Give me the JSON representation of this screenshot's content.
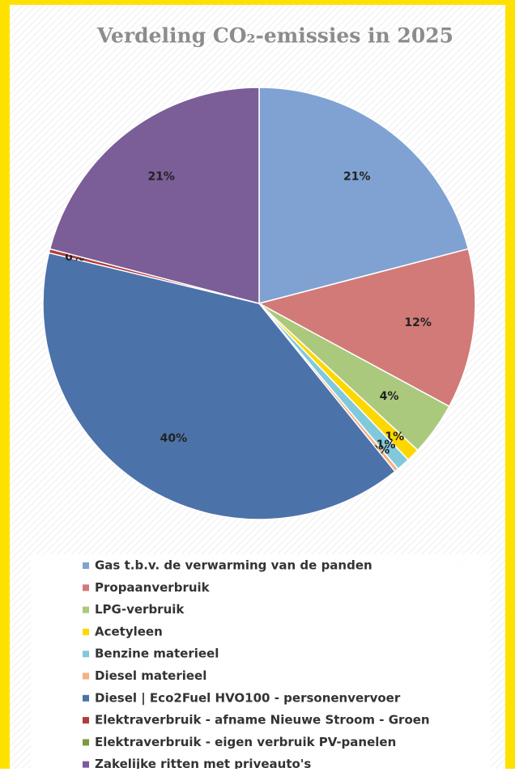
{
  "chart_data": {
    "type": "pie",
    "title": "Verdeling CO₂-emissies in 2025",
    "categories": [
      "Gas t.b.v. de verwarming van de panden",
      "Propaanverbruik",
      "LPG-verbruik",
      "Acetyleen",
      "Benzine materieel",
      "Diesel materieel",
      "Diesel | Eco2Fuel HVO100 - personenvervoer",
      "Elektraverbruik - afname Nieuwe Stroom - Groen",
      "Elektraverbruik - eigen verbruik PV-panelen",
      "Zakelijke ritten met priveauto's"
    ],
    "values": [
      21,
      12,
      4,
      1,
      1,
      0.3,
      39.7,
      0.3,
      0,
      21
    ],
    "value_labels": [
      "21%",
      "12%",
      "4%",
      "1%",
      "1%",
      "0%",
      "40%",
      "0%",
      null,
      "21%"
    ],
    "colors": [
      "#7fa2d2",
      "#d27a78",
      "#abc97c",
      "#ffd700",
      "#80c9dd",
      "#f4b183",
      "#4c72aa",
      "#b23b3b",
      "#7b9b3b",
      "#7b5d97"
    ],
    "legend": "bottom"
  }
}
